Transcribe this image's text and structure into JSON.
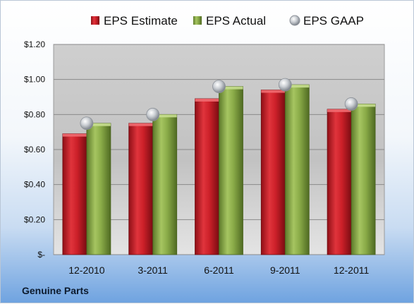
{
  "chart_data": {
    "type": "bar",
    "categories": [
      "12-2010",
      "3-2011",
      "6-2011",
      "9-2011",
      "12-2011"
    ],
    "series": [
      {
        "name": "EPS Estimate",
        "values": [
          0.69,
          0.75,
          0.89,
          0.94,
          0.83
        ],
        "color": "#c8202a",
        "kind": "bar"
      },
      {
        "name": "EPS Actual",
        "values": [
          0.75,
          0.8,
          0.96,
          0.97,
          0.86
        ],
        "color": "#86a844",
        "kind": "bar"
      },
      {
        "name": "EPS GAAP",
        "values": [
          0.75,
          0.8,
          0.96,
          0.97,
          0.86
        ],
        "color": "#b8bcc2",
        "kind": "marker"
      }
    ],
    "y_ticks": [
      "$-",
      "$0.20",
      "$0.40",
      "$0.60",
      "$0.80",
      "$1.00",
      "$1.20"
    ],
    "ylim": [
      0,
      1.2
    ],
    "grid": true,
    "legend_position": "top"
  },
  "footer": {
    "company": "Genuine Parts"
  }
}
